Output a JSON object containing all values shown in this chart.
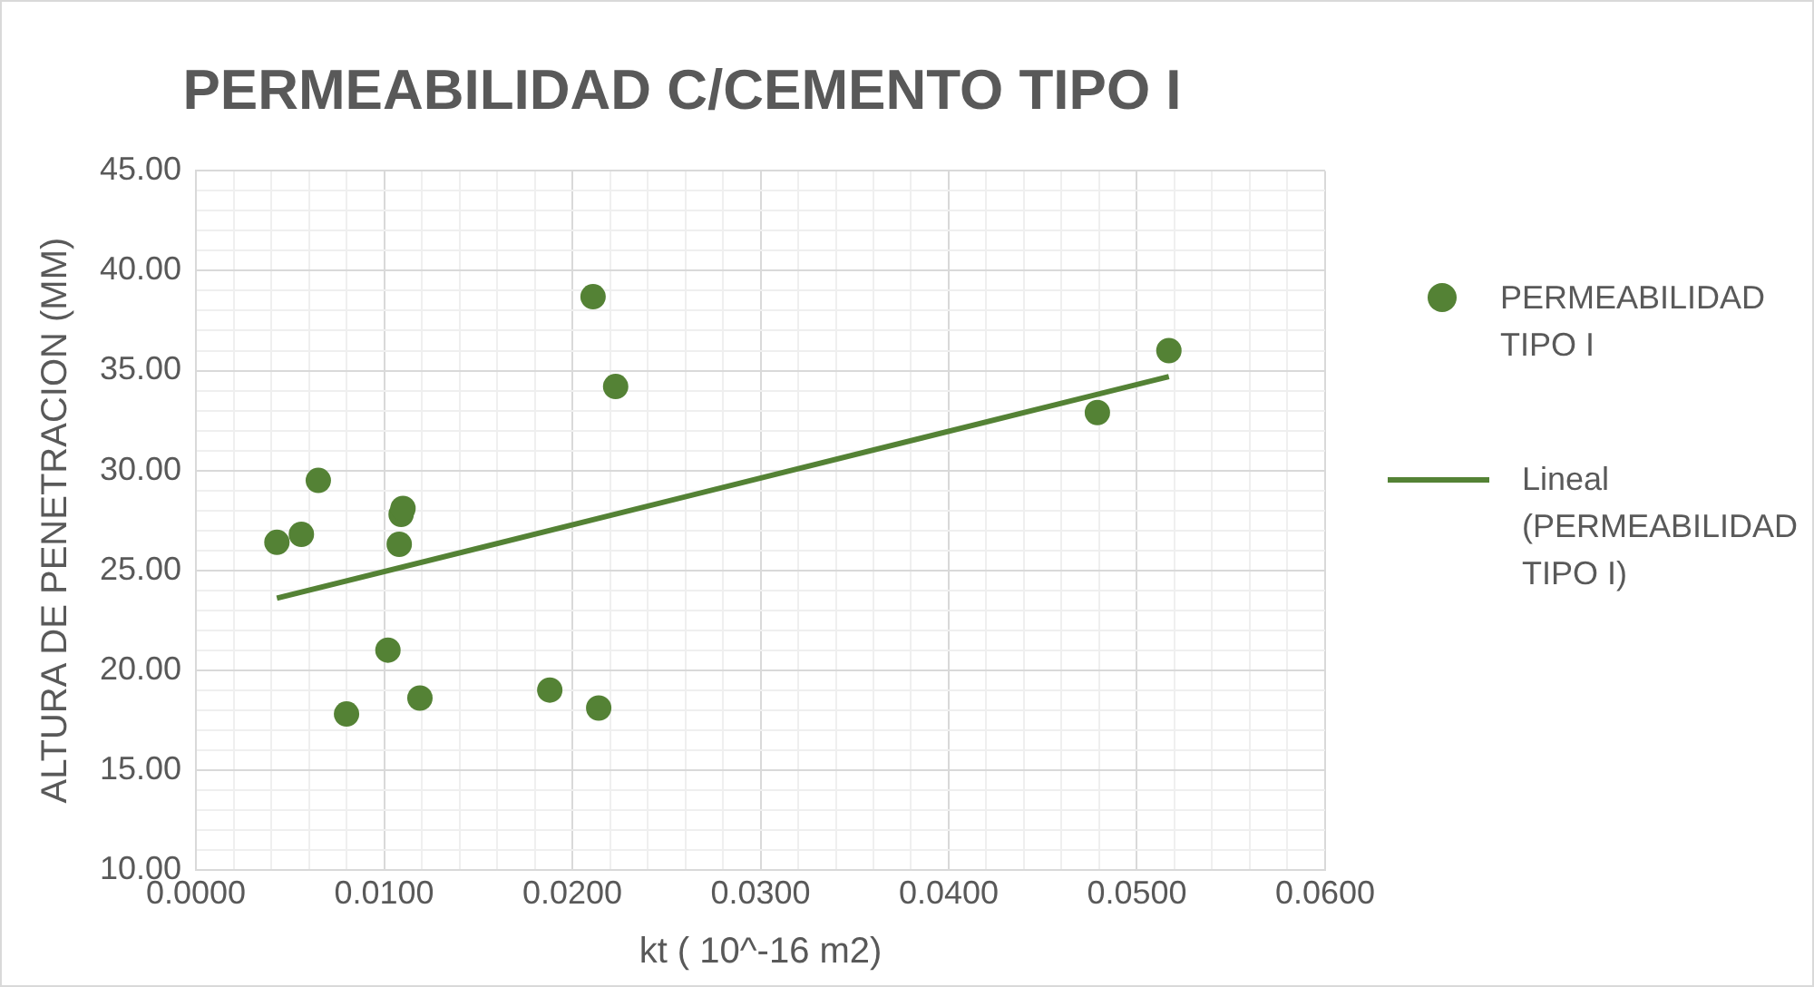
{
  "chart_data": {
    "type": "scatter",
    "title": "PERMEABILIDAD C/CEMENTO TIPO I",
    "xlabel": "kt ( 10^-16 m2)",
    "ylabel": "ALTURA DE PENETRACION (MM)",
    "series": [
      {
        "name": "PERMEABILIDAD TIPO I",
        "color": "#548235",
        "marker": "circle",
        "x": [
          0.0043,
          0.0056,
          0.0065,
          0.008,
          0.0102,
          0.0108,
          0.0109,
          0.011,
          0.0119,
          0.0188,
          0.0211,
          0.0214,
          0.0223,
          0.0479,
          0.0517
        ],
        "values": [
          26.4,
          26.8,
          29.5,
          17.8,
          21.0,
          26.3,
          27.8,
          28.1,
          18.6,
          19.0,
          38.7,
          18.1,
          34.2,
          32.9,
          36.0
        ]
      },
      {
        "name": "Lineal (PERMEABILIDAD TIPO I)",
        "type": "line",
        "color": "#548235",
        "marker": "none",
        "line_style": "solid",
        "x": [
          0.0043,
          0.0517
        ],
        "values": [
          23.6,
          34.7
        ]
      }
    ],
    "xlim": [
      0,
      0.06
    ],
    "xticks": [
      {
        "value": 0,
        "label": "0.0000"
      },
      {
        "value": 0.002,
        "label": null
      },
      {
        "value": 0.004,
        "label": null
      },
      {
        "value": 0.006,
        "label": null
      },
      {
        "value": 0.008,
        "label": null
      },
      {
        "value": 0.01,
        "label": "0.0100"
      },
      {
        "value": 0.012,
        "label": null
      },
      {
        "value": 0.014,
        "label": null
      },
      {
        "value": 0.016,
        "label": null
      },
      {
        "value": 0.018,
        "label": null
      },
      {
        "value": 0.02,
        "label": "0.0200"
      },
      {
        "value": 0.022,
        "label": null
      },
      {
        "value": 0.024,
        "label": null
      },
      {
        "value": 0.026,
        "label": null
      },
      {
        "value": 0.028,
        "label": null
      },
      {
        "value": 0.03,
        "label": "0.0300"
      },
      {
        "value": 0.032,
        "label": null
      },
      {
        "value": 0.034,
        "label": null
      },
      {
        "value": 0.036,
        "label": null
      },
      {
        "value": 0.038,
        "label": null
      },
      {
        "value": 0.04,
        "label": "0.0400"
      },
      {
        "value": 0.042,
        "label": null
      },
      {
        "value": 0.044,
        "label": null
      },
      {
        "value": 0.046,
        "label": null
      },
      {
        "value": 0.048,
        "label": null
      },
      {
        "value": 0.05,
        "label": "0.0500"
      },
      {
        "value": 0.052,
        "label": null
      },
      {
        "value": 0.054,
        "label": null
      },
      {
        "value": 0.056,
        "label": null
      },
      {
        "value": 0.058,
        "label": null
      },
      {
        "value": 0.06,
        "label": "0.0600"
      }
    ],
    "ylim": [
      10,
      45
    ],
    "yticks": [
      {
        "value": 10,
        "label": "10.00"
      },
      {
        "value": 11,
        "label": null
      },
      {
        "value": 12,
        "label": null
      },
      {
        "value": 13,
        "label": null
      },
      {
        "value": 14,
        "label": null
      },
      {
        "value": 15,
        "label": "15.00"
      },
      {
        "value": 16,
        "label": null
      },
      {
        "value": 17,
        "label": null
      },
      {
        "value": 18,
        "label": null
      },
      {
        "value": 19,
        "label": null
      },
      {
        "value": 20,
        "label": "20.00"
      },
      {
        "value": 21,
        "label": null
      },
      {
        "value": 22,
        "label": null
      },
      {
        "value": 23,
        "label": null
      },
      {
        "value": 24,
        "label": null
      },
      {
        "value": 25,
        "label": "25.00"
      },
      {
        "value": 26,
        "label": null
      },
      {
        "value": 27,
        "label": null
      },
      {
        "value": 28,
        "label": null
      },
      {
        "value": 29,
        "label": null
      },
      {
        "value": 30,
        "label": "30.00"
      },
      {
        "value": 31,
        "label": null
      },
      {
        "value": 32,
        "label": null
      },
      {
        "value": 33,
        "label": null
      },
      {
        "value": 34,
        "label": null
      },
      {
        "value": 35,
        "label": "35.00"
      },
      {
        "value": 36,
        "label": null
      },
      {
        "value": 37,
        "label": null
      },
      {
        "value": 38,
        "label": null
      },
      {
        "value": 39,
        "label": null
      },
      {
        "value": 40,
        "label": "40.00"
      },
      {
        "value": 41,
        "label": null
      },
      {
        "value": 42,
        "label": null
      },
      {
        "value": 43,
        "label": null
      },
      {
        "value": 44,
        "label": null
      },
      {
        "value": 45,
        "label": "45.00"
      }
    ],
    "grid": true,
    "legend": "right"
  }
}
